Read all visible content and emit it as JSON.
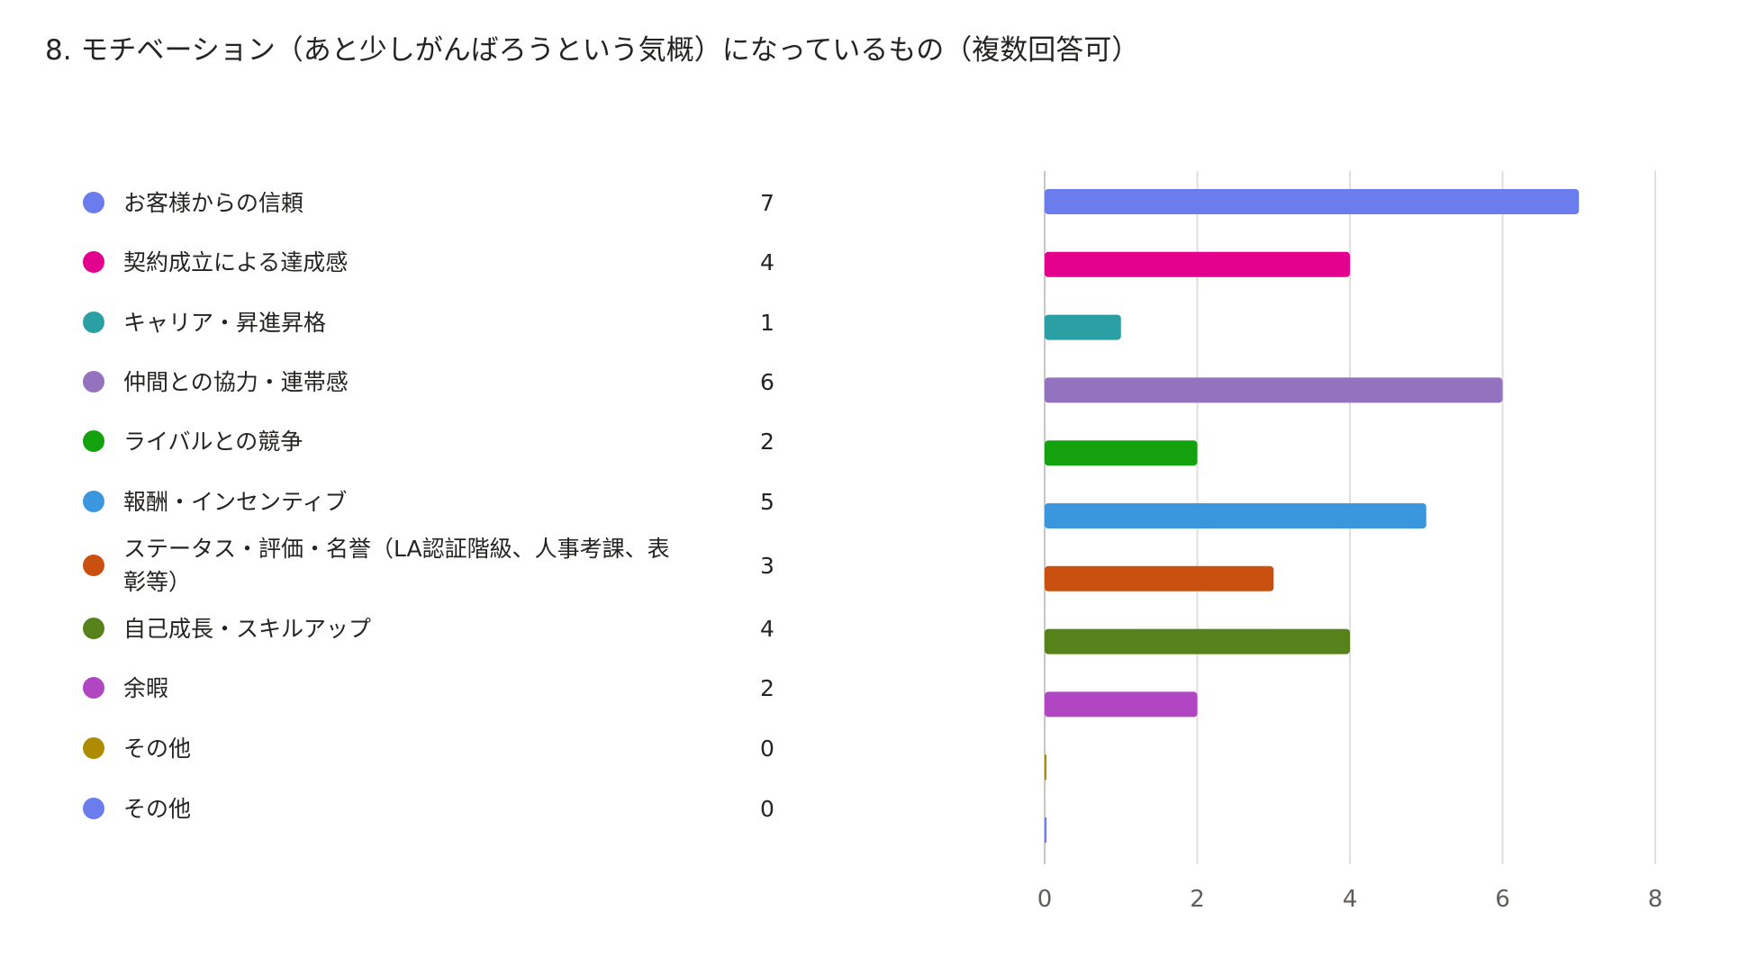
{
  "title": "8. モチベーション（あと少しがんばろうという気概）になっているもの（複数回答可）",
  "chart_data": {
    "type": "bar",
    "orientation": "horizontal",
    "title": "8. モチベーション（あと少しがんばろうという気概）になっているもの（複数回答可）",
    "xlim": [
      0,
      8
    ],
    "xticks": [
      0,
      2,
      4,
      6,
      8
    ],
    "grid": true,
    "legend_placement": "left",
    "items": [
      {
        "label": "お客様からの信頼",
        "value": 7,
        "color": "#6b7ded"
      },
      {
        "label": "契約成立による達成感",
        "value": 4,
        "color": "#e3008c"
      },
      {
        "label": "キャリア・昇進昇格",
        "value": 1,
        "color": "#2aa0a4"
      },
      {
        "label": "仲間との協力・連帯感",
        "value": 6,
        "color": "#9373c0"
      },
      {
        "label": "ライバルとの競争",
        "value": 2,
        "color": "#13a10e"
      },
      {
        "label": "報酬・インセンティブ",
        "value": 5,
        "color": "#3a96dd"
      },
      {
        "label": "ステータス・評価・名誉（LA認証階級、人事考課、表彰等）",
        "value": 3,
        "color": "#ca5010"
      },
      {
        "label": "自己成長・スキルアップ",
        "value": 4,
        "color": "#57811b"
      },
      {
        "label": "余暇",
        "value": 2,
        "color": "#b146c2"
      },
      {
        "label": "その他",
        "value": 0,
        "color": "#ae8c00"
      },
      {
        "label": "その他",
        "value": 0,
        "color": "#6b7ded"
      }
    ]
  }
}
